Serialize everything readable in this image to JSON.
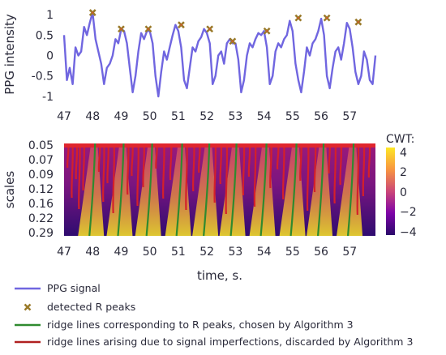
{
  "chart_data": [
    {
      "type": "line",
      "ylabel": "PPG intensity",
      "xlim": [
        47,
        57.9
      ],
      "ylim": [
        -1.1,
        1.2
      ],
      "x_ticks": [
        "47",
        "48",
        "49",
        "50",
        "51",
        "52",
        "53",
        "54",
        "55",
        "56",
        "57"
      ],
      "y_ticks": [
        "1",
        "0.5",
        "0",
        "-0.5",
        "-1"
      ],
      "series": [
        {
          "name": "PPG signal",
          "color": "#7066e0",
          "x": [
            47.0,
            47.1,
            47.2,
            47.3,
            47.4,
            47.5,
            47.6,
            47.7,
            47.8,
            47.9,
            48.0,
            48.1,
            48.2,
            48.3,
            48.4,
            48.5,
            48.6,
            48.7,
            48.8,
            48.9,
            49.0,
            49.1,
            49.2,
            49.3,
            49.4,
            49.5,
            49.6,
            49.7,
            49.8,
            49.9,
            50.0,
            50.1,
            50.2,
            50.3,
            50.4,
            50.5,
            50.6,
            50.7,
            50.8,
            50.9,
            51.0,
            51.1,
            51.2,
            51.3,
            51.4,
            51.5,
            51.6,
            51.7,
            51.8,
            51.9,
            52.0,
            52.1,
            52.2,
            52.3,
            52.4,
            52.5,
            52.6,
            52.7,
            52.8,
            52.9,
            53.0,
            53.1,
            53.2,
            53.3,
            53.4,
            53.5,
            53.6,
            53.7,
            53.8,
            53.9,
            54.0,
            54.1,
            54.2,
            54.3,
            54.4,
            54.5,
            54.6,
            54.7,
            54.8,
            54.9,
            55.0,
            55.1,
            55.2,
            55.3,
            55.4,
            55.5,
            55.6,
            55.7,
            55.8,
            55.9,
            56.0,
            56.1,
            56.2,
            56.3,
            56.4,
            56.5,
            56.6,
            56.7,
            56.8,
            56.9,
            57.0,
            57.1,
            57.2,
            57.3,
            57.4,
            57.5,
            57.6,
            57.7,
            57.8,
            57.9
          ],
          "y": [
            0.5,
            -0.6,
            -0.3,
            -0.7,
            0.2,
            0.0,
            0.1,
            0.7,
            0.5,
            0.8,
            1.05,
            0.4,
            0.1,
            -0.2,
            -0.7,
            -0.3,
            -0.2,
            0.0,
            0.4,
            0.3,
            0.65,
            0.6,
            0.3,
            -0.3,
            -0.9,
            -0.5,
            0.1,
            0.55,
            0.4,
            0.6,
            0.6,
            0.3,
            -0.5,
            -1.0,
            -0.4,
            0.1,
            -0.1,
            0.2,
            0.5,
            0.75,
            0.6,
            0.2,
            -0.6,
            -0.8,
            -0.3,
            0.2,
            0.1,
            0.35,
            0.45,
            0.65,
            0.55,
            0.3,
            -0.7,
            -0.5,
            0.0,
            0.1,
            -0.2,
            0.3,
            0.4,
            0.3,
            0.3,
            -0.1,
            -0.9,
            -0.6,
            0.0,
            0.3,
            0.2,
            0.4,
            0.55,
            0.5,
            0.6,
            0.2,
            -0.7,
            -0.5,
            0.1,
            0.3,
            0.2,
            0.4,
            0.5,
            0.85,
            0.6,
            -0.2,
            -0.6,
            -0.9,
            -0.4,
            0.2,
            0.0,
            0.3,
            0.4,
            0.6,
            0.9,
            0.5,
            -0.5,
            -0.8,
            -0.3,
            0.1,
            0.2,
            -0.1,
            0.3,
            0.8,
            0.65,
            0.2,
            -0.4,
            -0.7,
            -0.5,
            0.1,
            -0.1,
            -0.6,
            -0.7,
            0.0
          ]
        },
        {
          "name": "detected R peaks",
          "type": "scatter",
          "color": "#9a7a2a",
          "x": [
            48.0,
            49.0,
            49.95,
            51.1,
            52.1,
            52.9,
            54.1,
            55.2,
            56.2,
            57.3
          ],
          "y": [
            1.05,
            0.65,
            0.65,
            0.75,
            0.65,
            0.35,
            0.6,
            0.92,
            0.92,
            0.82
          ]
        }
      ]
    },
    {
      "type": "heatmap",
      "xlabel": "time, s.",
      "ylabel": "scales",
      "xlim": [
        47,
        57.9
      ],
      "x_ticks": [
        "47",
        "48",
        "49",
        "50",
        "51",
        "52",
        "53",
        "54",
        "55",
        "56",
        "57"
      ],
      "y_ticks": [
        "0.05",
        "0.07",
        "0.09",
        "0.12",
        "0.16",
        "0.22",
        "0.29"
      ],
      "colorbar": {
        "title": "CWT:",
        "range": [
          -4,
          4.5
        ],
        "ticks": [
          "4",
          "2",
          "0",
          "−2",
          "−4"
        ],
        "colors": [
          "#fde725",
          "#f89540",
          "#cc4778",
          "#7e03a8",
          "#2a0a6a"
        ]
      },
      "green_ridge_lines": [
        48.0,
        49.0,
        50.0,
        51.05,
        52.0,
        52.95,
        54.0,
        55.05,
        56.0,
        57.05
      ],
      "red_ridge_lines": [
        47.15,
        47.3,
        47.45,
        47.55,
        47.7,
        48.25,
        48.4,
        48.55,
        48.75,
        49.25,
        49.4,
        49.6,
        49.8,
        50.25,
        50.5,
        50.75,
        51.3,
        51.55,
        51.75,
        52.3,
        52.5,
        52.7,
        53.3,
        53.5,
        53.7,
        54.25,
        54.5,
        54.7,
        55.3,
        55.55,
        55.8,
        56.3,
        56.5,
        56.7,
        57.3,
        57.5,
        57.7
      ]
    }
  ],
  "legend": {
    "items": [
      {
        "label": "PPG signal",
        "color": "#7066e0",
        "kind": "line"
      },
      {
        "label": "detected R peaks",
        "color": "#9a7a2a",
        "kind": "marker"
      },
      {
        "label": "ridge lines corresponding to R peaks, chosen by Algorithm 3",
        "color": "#2f8a2f",
        "kind": "line"
      },
      {
        "label": "ridge lines arising due to signal imperfections, discarded by Algorithm 3",
        "color": "#b02020",
        "kind": "line"
      }
    ]
  }
}
